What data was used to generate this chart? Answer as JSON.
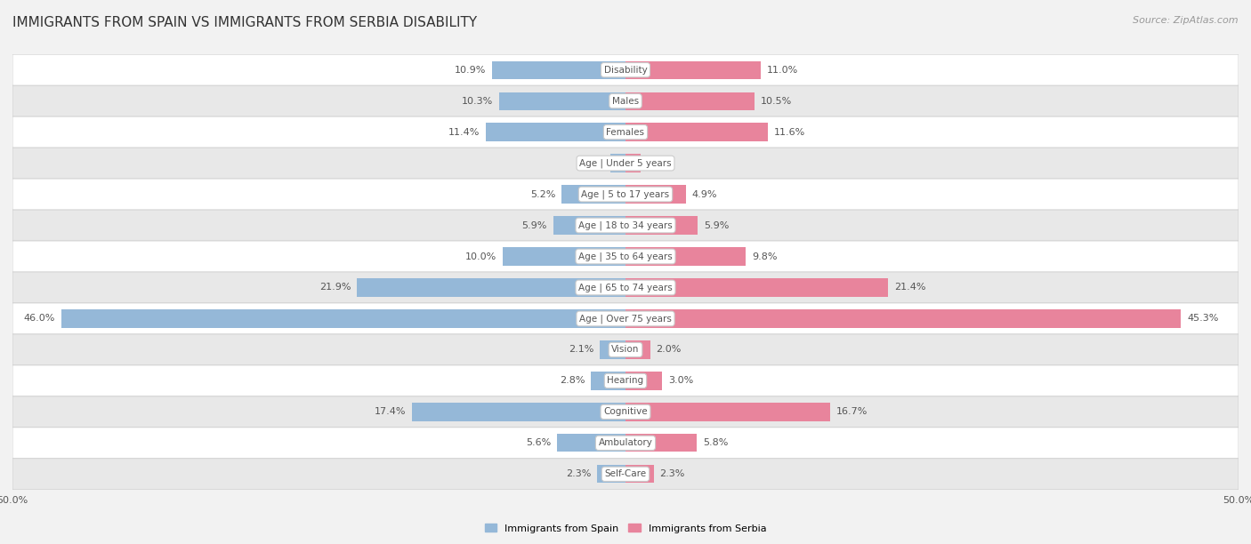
{
  "title": "IMMIGRANTS FROM SPAIN VS IMMIGRANTS FROM SERBIA DISABILITY",
  "source": "Source: ZipAtlas.com",
  "categories": [
    "Disability",
    "Males",
    "Females",
    "Age | Under 5 years",
    "Age | 5 to 17 years",
    "Age | 18 to 34 years",
    "Age | 35 to 64 years",
    "Age | 65 to 74 years",
    "Age | Over 75 years",
    "Vision",
    "Hearing",
    "Cognitive",
    "Ambulatory",
    "Self-Care"
  ],
  "spain_values": [
    10.9,
    10.3,
    11.4,
    1.2,
    5.2,
    5.9,
    10.0,
    21.9,
    46.0,
    2.1,
    2.8,
    17.4,
    5.6,
    2.3
  ],
  "serbia_values": [
    11.0,
    10.5,
    11.6,
    1.2,
    4.9,
    5.9,
    9.8,
    21.4,
    45.3,
    2.0,
    3.0,
    16.7,
    5.8,
    2.3
  ],
  "spain_color": "#95b8d8",
  "serbia_color": "#e8849c",
  "spain_label": "Immigrants from Spain",
  "serbia_label": "Immigrants from Serbia",
  "xlim": 50.0,
  "bar_height": 0.58,
  "bg_color": "#f2f2f2",
  "row_color_light": "#ffffff",
  "row_color_dark": "#e8e8e8",
  "title_fontsize": 11,
  "label_fontsize": 8,
  "value_fontsize": 8,
  "source_fontsize": 8,
  "cat_label_fontsize": 7.5
}
